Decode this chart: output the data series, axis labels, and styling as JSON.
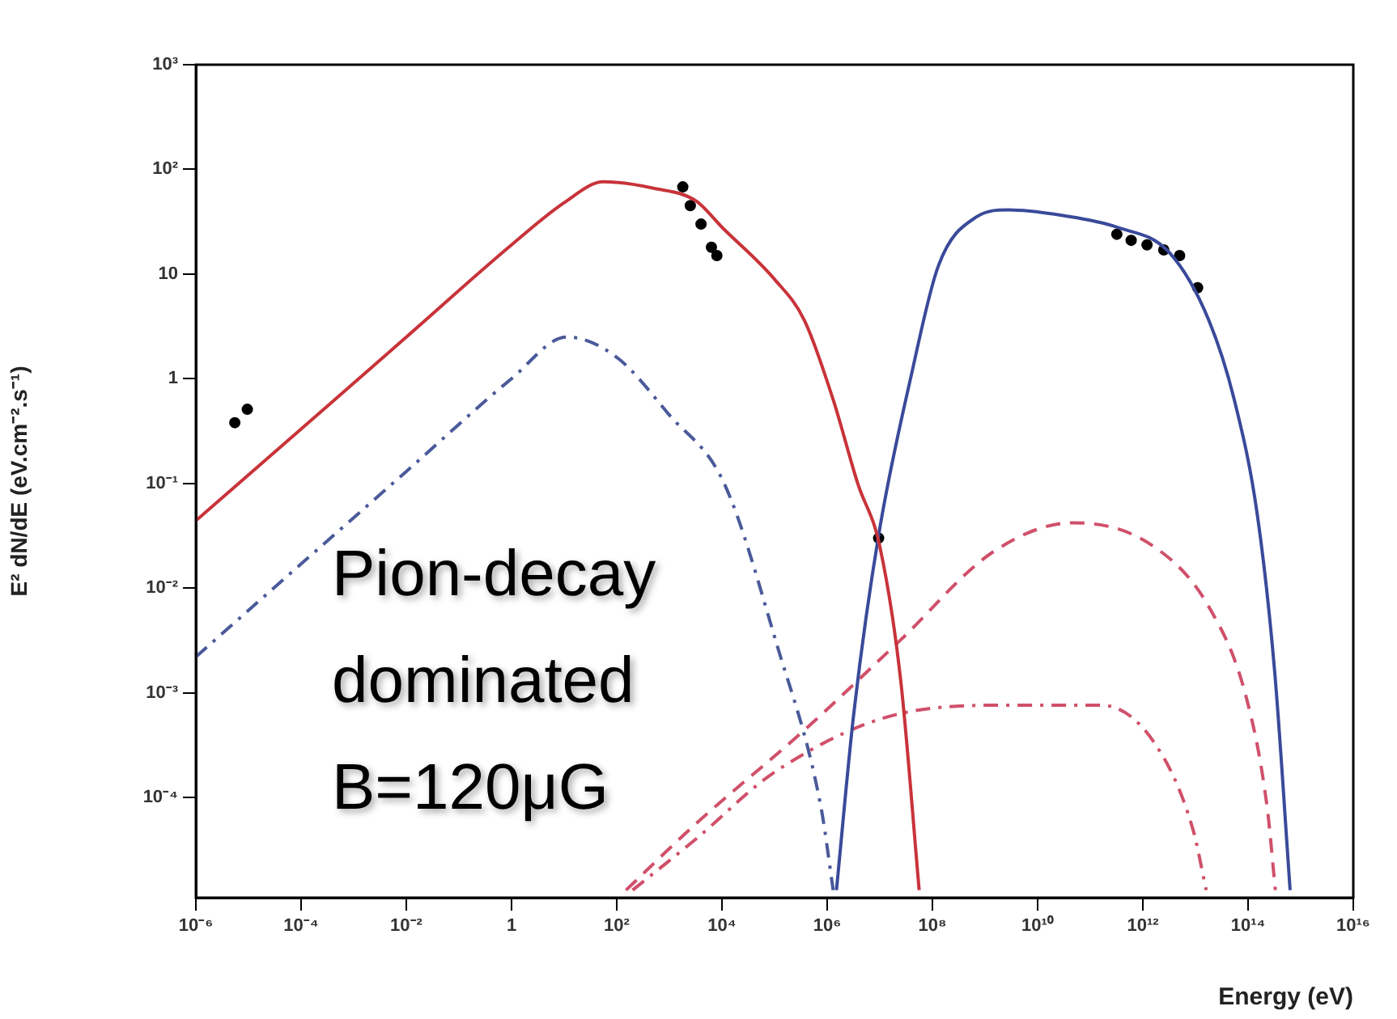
{
  "chart_data": {
    "type": "line",
    "xlabel": "Energy (eV)",
    "ylabel": "E² dN/dE (eV.cm⁻².s⁻¹)",
    "log": "xy",
    "grid": false,
    "xlim": [
      1e-06,
      1e+16
    ],
    "ylim": [
      1.1e-05,
      1000
    ],
    "xticks": [
      {
        "value": 1e-06,
        "label": "10⁻⁶"
      },
      {
        "value": 0.0001,
        "label": "10⁻⁴"
      },
      {
        "value": 0.01,
        "label": "10⁻²"
      },
      1,
      {
        "value": 100,
        "label": "10²"
      },
      {
        "value": 10000.0,
        "label": "10⁴"
      },
      {
        "value": 1000000.0,
        "label": "10⁶"
      },
      {
        "value": 100000000.0,
        "label": "10⁸"
      },
      {
        "value": 10000000000.0,
        "label": "10¹⁰"
      },
      {
        "value": 1000000000000.0,
        "label": "10¹²"
      },
      {
        "value": 100000000000000.0,
        "label": "10¹⁴"
      },
      {
        "value": 1e+16,
        "label": "10¹⁶"
      }
    ],
    "yticks": [
      {
        "value": 0.0001,
        "label": "10⁻⁴"
      },
      {
        "value": 0.001,
        "label": "10⁻³"
      },
      {
        "value": 0.01,
        "label": "10⁻²"
      },
      {
        "value": 0.1,
        "label": "10⁻¹"
      },
      1,
      10,
      {
        "value": 100,
        "label": "10²"
      },
      {
        "value": 1000,
        "label": "10³"
      }
    ],
    "annotations": [
      "Pion-decay dominated B=120μG"
    ],
    "series": [
      {
        "color": "#c8333a",
        "line_style": "solid",
        "x": [
          1e-06,
          0.0001,
          0.01,
          1,
          10,
          56,
          500,
          3200,
          10000.0,
          100000.0,
          370000.0,
          1300000.0,
          3800000.0,
          10000000.0,
          25000000.0,
          56000000.0
        ],
        "values": [
          0.044,
          0.33,
          2.5,
          19,
          48,
          76,
          66,
          50,
          28,
          8.9,
          3.6,
          0.63,
          0.1,
          0.025,
          0.0013,
          1.3e-05
        ]
      },
      {
        "color": "#3a4a9a",
        "line_style": "solid",
        "x": [
          1500000.0,
          3200000.0,
          9500000.0,
          40000000.0,
          130000000.0,
          680000000.0,
          2800000000.0,
          32000000000.0,
          320000000000.0,
          3200000000000.0,
          18000000000000.0,
          56000000000000.0,
          150000000000000.0,
          320000000000000.0,
          630000000000000.0
        ],
        "values": [
          1.3e-05,
          0.00063,
          0.032,
          1.1,
          12,
          35,
          41,
          36,
          28,
          16,
          3.6,
          0.6,
          0.05,
          0.0016,
          1.3e-05
        ]
      },
      {
        "color": "#4a5a9a",
        "line_style": "dashdot",
        "x": [
          1e-06,
          0.0001,
          0.01,
          1,
          11.2,
          100,
          1000,
          11000.0,
          110000.0,
          760000.0,
          1300000.0
        ],
        "values": [
          0.0022,
          0.017,
          0.13,
          1,
          2.5,
          1.6,
          0.45,
          0.1,
          0.0029,
          8.1e-05,
          1.3e-05
        ]
      },
      {
        "color": "#d0506a",
        "line_style": "dashed",
        "x": [
          150,
          3200,
          370000.0,
          25000000.0,
          1400000000.0,
          48000000000.0,
          1600000000000.0,
          18000000000000.0,
          93000000000000.0,
          230000000000000.0,
          330000000000000.0
        ],
        "values": [
          1.3e-05,
          5.6e-05,
          0.00044,
          0.0032,
          0.022,
          0.042,
          0.025,
          0.0066,
          0.00089,
          8.1e-05,
          1.3e-05
        ]
      },
      {
        "color": "#d0506a",
        "line_style": "dashdot",
        "x": [
          200,
          3200,
          110000.0,
          32000000.0,
          3200000000.0,
          160000000000.0,
          1600000000000.0,
          8900000000000.0,
          16000000000000.0
        ],
        "values": [
          1.3e-05,
          4e-05,
          0.00018,
          0.00065,
          0.00076,
          0.00076,
          0.00034,
          5e-05,
          1.3e-05
        ]
      },
      {
        "type": "scatter",
        "color": "#000000",
        "marker": "circle",
        "x": [
          5.5e-06,
          9.5e-06,
          1800,
          2500,
          4000,
          6300,
          8000,
          9500000.0,
          320000000000.0,
          600000000000.0,
          1200000000000.0,
          2500000000000.0,
          5000000000000.0,
          11000000000000.0
        ],
        "values": [
          0.38,
          0.51,
          68,
          45,
          30,
          18,
          15,
          0.03,
          24,
          21,
          19,
          17,
          15,
          7.4
        ]
      }
    ]
  }
}
